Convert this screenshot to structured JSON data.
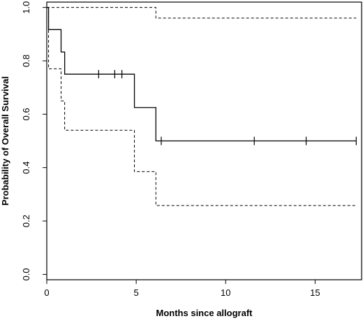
{
  "chart_data": {
    "type": "line",
    "title": "",
    "xlabel": "Months since allograft",
    "ylabel": "Probability of Overall Survival",
    "xlim": [
      0,
      17.6
    ],
    "ylim": [
      -0.02,
      1.02
    ],
    "x_ticks": [
      0,
      5,
      10,
      15
    ],
    "x_tick_labels": [
      "0",
      "5",
      "10",
      "15"
    ],
    "y_ticks": [
      0.0,
      0.2,
      0.4,
      0.6,
      0.8,
      1.0
    ],
    "y_tick_labels": [
      "0.0",
      "0.2",
      "0.4",
      "0.6",
      "0.8",
      "1.0"
    ],
    "grid": false,
    "legend": "none",
    "series": [
      {
        "style": "solid",
        "points": [
          [
            0,
            1.0
          ],
          [
            0.1,
            1.0
          ],
          [
            0.1,
            0.917
          ],
          [
            0.8,
            0.917
          ],
          [
            0.8,
            0.833
          ],
          [
            1.0,
            0.833
          ],
          [
            1.0,
            0.75
          ],
          [
            4.9,
            0.75
          ],
          [
            4.9,
            0.625
          ],
          [
            6.1,
            0.625
          ],
          [
            6.1,
            0.5
          ],
          [
            17.3,
            0.5
          ]
        ],
        "censored": [
          {
            "x": 2.9,
            "y": 0.75
          },
          {
            "x": 3.8,
            "y": 0.75
          },
          {
            "x": 4.2,
            "y": 0.75
          },
          {
            "x": 6.4,
            "y": 0.5
          },
          {
            "x": 11.6,
            "y": 0.5
          },
          {
            "x": 14.5,
            "y": 0.5
          },
          {
            "x": 17.3,
            "y": 0.5
          }
        ]
      },
      {
        "style": "dashed",
        "points": [
          [
            0,
            1.0
          ],
          [
            6.1,
            1.0
          ],
          [
            6.1,
            0.96
          ],
          [
            17.3,
            0.96
          ]
        ]
      },
      {
        "style": "dashed",
        "points": [
          [
            0,
            1.0
          ],
          [
            0.1,
            1.0
          ],
          [
            0.1,
            0.77
          ],
          [
            0.8,
            0.77
          ],
          [
            0.8,
            0.65
          ],
          [
            1.0,
            0.65
          ],
          [
            1.0,
            0.54
          ],
          [
            4.9,
            0.54
          ],
          [
            4.9,
            0.385
          ],
          [
            6.1,
            0.385
          ],
          [
            6.1,
            0.258
          ],
          [
            17.3,
            0.258
          ]
        ]
      }
    ]
  }
}
